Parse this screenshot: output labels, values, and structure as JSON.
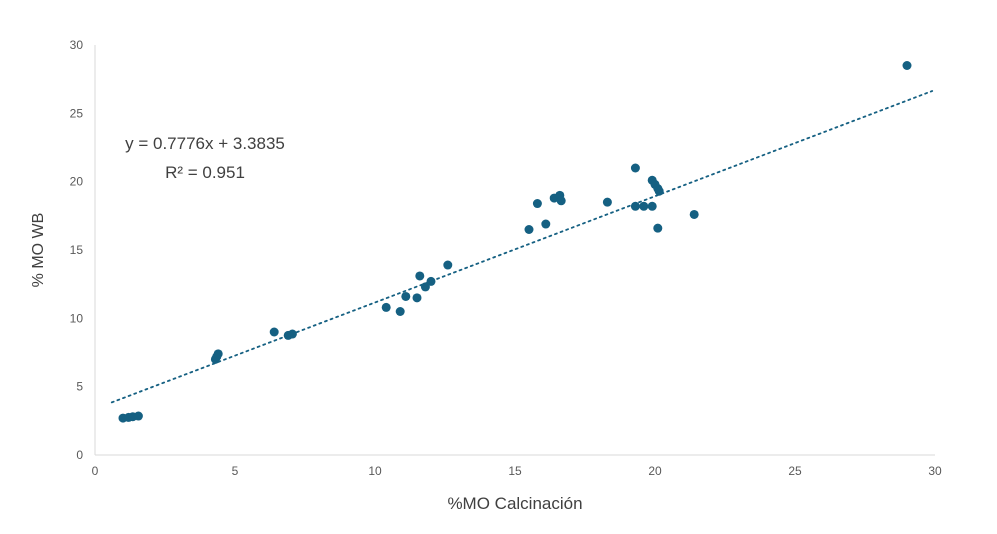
{
  "chart_data": {
    "type": "scatter",
    "title": "",
    "xlabel": "%MO Calcinación",
    "ylabel": "% MO WB",
    "xlim": [
      0,
      30
    ],
    "ylim": [
      0,
      30
    ],
    "xticks": [
      0,
      5,
      10,
      15,
      20,
      25,
      30
    ],
    "yticks": [
      0,
      5,
      10,
      15,
      20,
      25,
      30
    ],
    "grid": false,
    "legend": false,
    "marker_color": "#156082",
    "axis_line_color": "#d9d9d9",
    "tick_label_color": "#595959",
    "points": [
      [
        1.0,
        2.7
      ],
      [
        1.2,
        2.75
      ],
      [
        1.35,
        2.8
      ],
      [
        1.55,
        2.85
      ],
      [
        4.3,
        7.0
      ],
      [
        4.35,
        7.2
      ],
      [
        4.4,
        7.4
      ],
      [
        6.4,
        9.0
      ],
      [
        6.9,
        8.75
      ],
      [
        7.05,
        8.85
      ],
      [
        10.4,
        10.8
      ],
      [
        10.9,
        10.5
      ],
      [
        11.1,
        11.6
      ],
      [
        11.5,
        11.5
      ],
      [
        11.6,
        13.1
      ],
      [
        11.8,
        12.3
      ],
      [
        12.0,
        12.7
      ],
      [
        12.6,
        13.9
      ],
      [
        15.5,
        16.5
      ],
      [
        15.8,
        18.4
      ],
      [
        16.1,
        16.9
      ],
      [
        16.4,
        18.8
      ],
      [
        16.6,
        19.0
      ],
      [
        16.65,
        18.6
      ],
      [
        18.3,
        18.5
      ],
      [
        19.3,
        21.0
      ],
      [
        19.3,
        18.2
      ],
      [
        19.6,
        18.2
      ],
      [
        19.9,
        18.2
      ],
      [
        19.9,
        20.1
      ],
      [
        20.0,
        19.8
      ],
      [
        20.1,
        19.5
      ],
      [
        20.15,
        19.3
      ],
      [
        20.1,
        16.6
      ],
      [
        21.4,
        17.6
      ],
      [
        29.0,
        28.5
      ]
    ],
    "trendline": {
      "slope": 0.7776,
      "intercept": 3.3835,
      "x_start": 0.6,
      "x_end": 29.9,
      "style": "dotted",
      "color": "#156082",
      "equation_label": "y = 0.7776x + 3.3835",
      "r2_label": "R² = 0.951"
    }
  }
}
